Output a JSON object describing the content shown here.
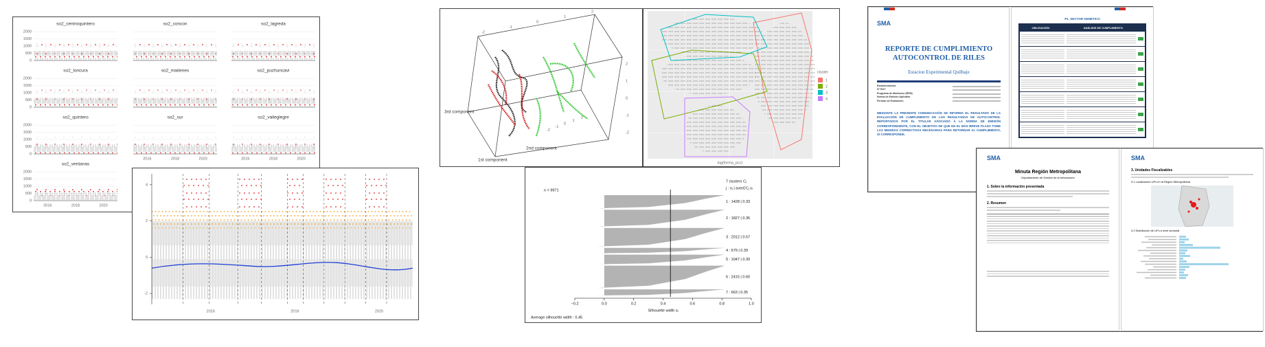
{
  "facet_plot": {
    "type": "faceted-scatter",
    "facets": [
      "so2_centroquintero",
      "so2_concon",
      "so2_lagreda",
      "so2_loncura",
      "so2_maitenes",
      "so2_puchuncavi",
      "so2_quintero",
      "so2_sur",
      "so2_valleglegre",
      "so2_ventanas"
    ],
    "ylim": [
      0,
      2200
    ],
    "yticks": [
      0,
      500,
      1000,
      1500,
      2000
    ],
    "xlim": [
      2015,
      2021
    ],
    "xticks": [
      2016,
      2018,
      2020
    ],
    "colors": {
      "base": "#b9b9b9",
      "exceed": "#e41a1c"
    }
  },
  "timeseries_plot": {
    "type": "line",
    "ylim": [
      -2.6,
      4.6
    ],
    "yticks": [
      -2,
      0,
      2,
      4
    ],
    "xlim": [
      2014.6,
      2020.8
    ],
    "xticks": [
      2016,
      2018,
      2020
    ],
    "colors": {
      "base": "#c4c4c4",
      "warn": "#f0a020",
      "exceed": "#e41a1c",
      "trend": "#1f3fd6"
    }
  },
  "pca_3d": {
    "type": "scatter3d",
    "x_label": "1st component",
    "y_label": "2nd component",
    "z_label": "3rd component",
    "ticks": [
      -2,
      -1,
      0,
      1,
      2
    ]
  },
  "cluster_plot": {
    "type": "scatter",
    "x_label": "log(forma_pcc)",
    "legend_title": "cluster",
    "series": [
      {
        "name": "1",
        "color": "#F8766D"
      },
      {
        "name": "2",
        "color": "#7CAE00"
      },
      {
        "name": "3",
        "color": "#00BFC4"
      },
      {
        "name": "4",
        "color": "#C77CFF"
      }
    ]
  },
  "silhouette": {
    "type": "silhouette",
    "n_label": "n = 9971",
    "header": "7  clusters  Cⱼ",
    "subheader": "j : nⱼ | aveᵢ∈Cⱼ sᵢ",
    "clusters": [
      {
        "n": 1428,
        "label": "1 :  1428  |  0.33"
      },
      {
        "n": 1827,
        "label": "2 :  1827  |  0.35"
      },
      {
        "n": 2012,
        "label": "3 :  2012  |  0.57"
      },
      {
        "n": 579,
        "label": "4 :  579  |  0.39"
      },
      {
        "n": 1047,
        "label": "5 :  1047  |  0.30"
      },
      {
        "n": 2415,
        "label": "6 :  2415  |  0.60"
      },
      {
        "n": 663,
        "label": "7 :  663  |  0.35"
      }
    ],
    "xlim": [
      -0.2,
      1.0
    ],
    "xticks": [
      {
        "value": -0.2,
        "label": "−0.2"
      },
      {
        "value": 0,
        "label": "0.0"
      },
      0.2,
      0.4,
      0.6,
      0.8,
      {
        "value": 1,
        "label": "1.0"
      }
    ],
    "x_label": "Silhouette width sᵢ",
    "average": {
      "value": 0.45,
      "label": "Average silhouette width :  0.45"
    }
  },
  "report": {
    "logo": "SMA",
    "title_lines": [
      "REPORTE DE CUMPLIMIENTO",
      "AUTOCONTROL DE RILES"
    ],
    "subtitle": "Estacion Experimental Quilbaje",
    "fields": [
      "Establecimiento",
      "N° RUT",
      "Programa de Monitoreo (RPM)",
      "Norma de Emisión Aplicable",
      "Periodo de Evaluación"
    ],
    "notice": "MEDIANTE LA PRESENTE COMUNICACIÓN SE INFORMA EL RESULTADO DE LA EVALUACIÓN DE CUMPLIMIENTO DE LOS RESULTADOS DE AUTOCONTROL REPORTADOS POR EL TITULAR ASOCIADO A LA NORMA DE EMISIÓN CORRESPONDIENTE, CON EL OBJETIVO DE QUE EN EL MÁS BREVE PLAZO TOME LAS MEDIDAS CORRECTIVAS NECESARIAS PARA RETORNAR AL CUMPLIMIENTO, SI CORRESPONDE.",
    "section": "P1. SECTOR GENÉTICO",
    "table_headers": [
      "OBLIGACIÓN",
      "ANÁLISIS DE CUMPLIMIENTO"
    ]
  },
  "minuta": {
    "logo": "SMA",
    "title": "Minuta Región Metropolitana",
    "department": "Departamento de Gestión de la Información",
    "headings": [
      "1. Sobre la información presentada",
      "2. Resumen",
      "3. Unidades Fiscalizables",
      "3.1 Localización UFs en la Región Metropolitana",
      "3.2 Distribución de UFs a nivel sectorial"
    ]
  }
}
